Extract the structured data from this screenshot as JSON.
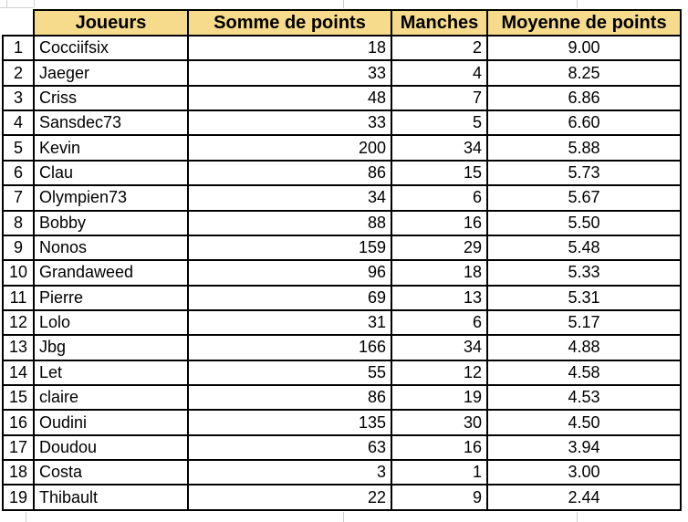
{
  "colors": {
    "header_bg": "#F7DB8C",
    "table_border": "#000000",
    "sheet_gridline": "#CFCFCF",
    "text": "#000000",
    "page_bg": "#FFFFFF"
  },
  "table": {
    "columns": [
      "Joueurs",
      "Somme de points",
      "Manches",
      "Moyenne de points"
    ],
    "rows": [
      {
        "num": "1",
        "joueur": "Cocciifsix",
        "somme": "18",
        "manches": "2",
        "moyenne": "9.00"
      },
      {
        "num": "2",
        "joueur": "Jaeger",
        "somme": "33",
        "manches": "4",
        "moyenne": "8.25"
      },
      {
        "num": "3",
        "joueur": "Criss",
        "somme": "48",
        "manches": "7",
        "moyenne": "6.86"
      },
      {
        "num": "4",
        "joueur": "Sansdec73",
        "somme": "33",
        "manches": "5",
        "moyenne": "6.60"
      },
      {
        "num": "5",
        "joueur": "Kevin",
        "somme": "200",
        "manches": "34",
        "moyenne": "5.88"
      },
      {
        "num": "6",
        "joueur": "Clau",
        "somme": "86",
        "manches": "15",
        "moyenne": "5.73"
      },
      {
        "num": "7",
        "joueur": "Olympien73",
        "somme": "34",
        "manches": "6",
        "moyenne": "5.67"
      },
      {
        "num": "8",
        "joueur": "Bobby",
        "somme": "88",
        "manches": "16",
        "moyenne": "5.50"
      },
      {
        "num": "9",
        "joueur": "Nonos",
        "somme": "159",
        "manches": "29",
        "moyenne": "5.48"
      },
      {
        "num": "10",
        "joueur": "Grandaweed",
        "somme": "96",
        "manches": "18",
        "moyenne": "5.33"
      },
      {
        "num": "11",
        "joueur": "Pierre",
        "somme": "69",
        "manches": "13",
        "moyenne": "5.31"
      },
      {
        "num": "12",
        "joueur": "Lolo",
        "somme": "31",
        "manches": "6",
        "moyenne": "5.17"
      },
      {
        "num": "13",
        "joueur": "Jbg",
        "somme": "166",
        "manches": "34",
        "moyenne": "4.88"
      },
      {
        "num": "14",
        "joueur": "Let",
        "somme": "55",
        "manches": "12",
        "moyenne": "4.58"
      },
      {
        "num": "15",
        "joueur": "claire",
        "somme": "86",
        "manches": "19",
        "moyenne": "4.53"
      },
      {
        "num": "16",
        "joueur": "Oudini",
        "somme": "135",
        "manches": "30",
        "moyenne": "4.50"
      },
      {
        "num": "17",
        "joueur": "Doudou",
        "somme": "63",
        "manches": "16",
        "moyenne": "3.94"
      },
      {
        "num": "18",
        "joueur": "Costa",
        "somme": "3",
        "manches": "1",
        "moyenne": "3.00"
      },
      {
        "num": "19",
        "joueur": "Thibault",
        "somme": "22",
        "manches": "9",
        "moyenne": "2.44"
      }
    ]
  }
}
